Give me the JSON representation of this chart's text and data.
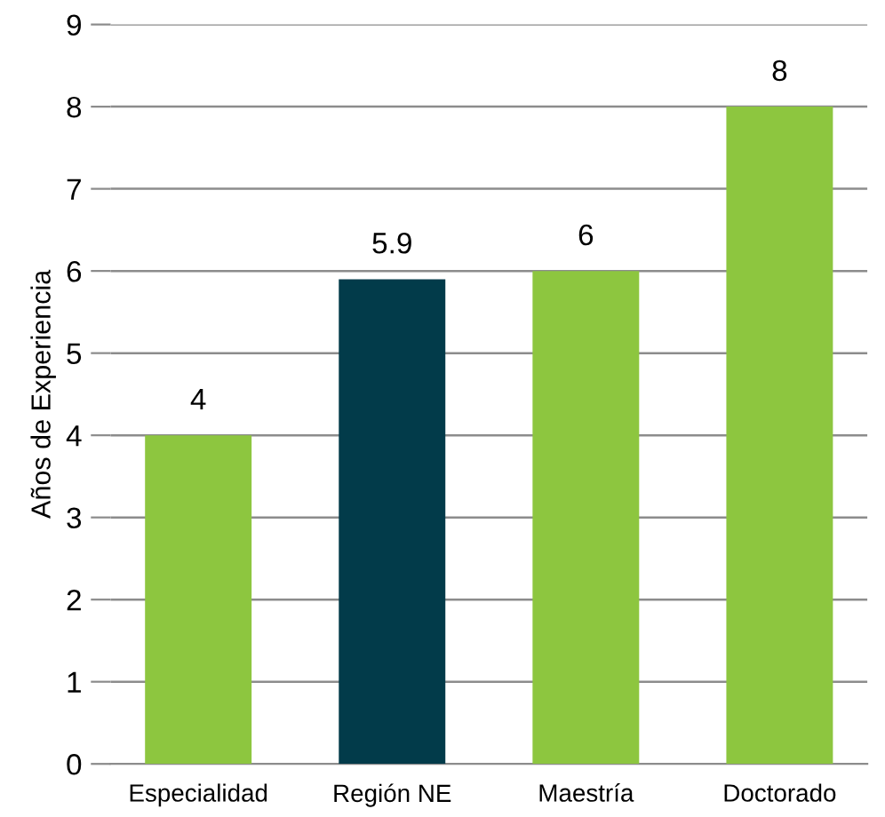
{
  "chart_data": {
    "type": "bar",
    "ylabel": "Años de Experiencia",
    "categories": [
      "Especialidad",
      "Región NE",
      "Maestría",
      "Doctorado"
    ],
    "values": [
      4,
      5.9,
      6,
      8
    ],
    "colors": [
      "#8dc63f",
      "#023b4a",
      "#8dc63f",
      "#8dc63f"
    ],
    "ylim": [
      0,
      9
    ],
    "yticks": [
      0,
      1,
      2,
      3,
      4,
      5,
      6,
      7,
      8,
      9
    ],
    "grid": "y",
    "data_labels": true,
    "legend": false
  }
}
